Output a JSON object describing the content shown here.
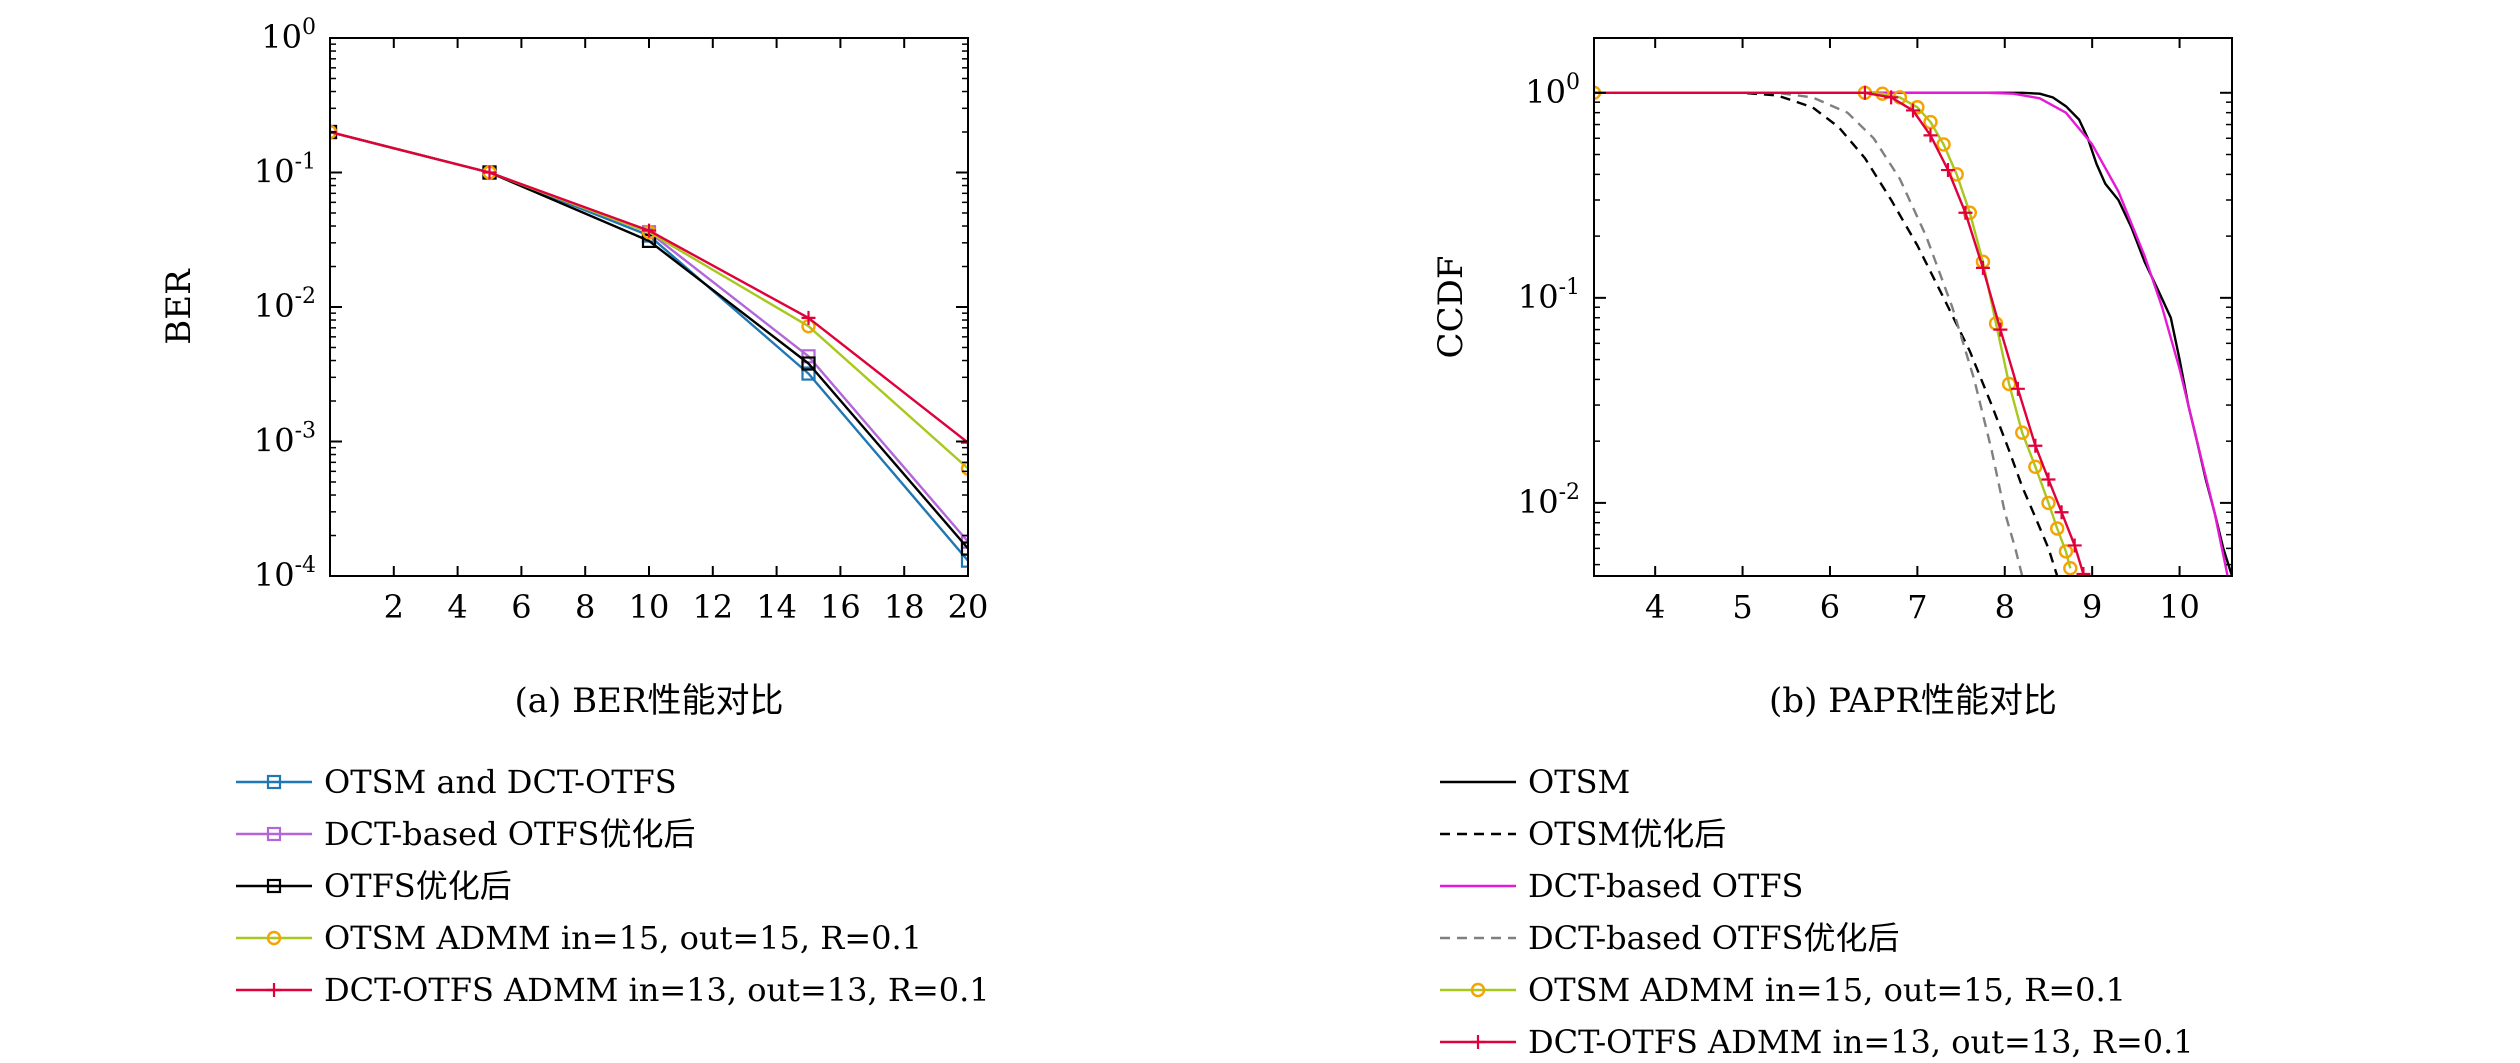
{
  "chart_data": [
    {
      "type": "line",
      "caption": "(a) BER性能对比",
      "title": "",
      "xlabel": "",
      "ylabel": "BER",
      "xlim": [
        0,
        20
      ],
      "ylim": [
        0.0001,
        1
      ],
      "y_scale": "log",
      "grid": false,
      "legend_position": "below",
      "x_ticks": [
        2,
        4,
        6,
        8,
        10,
        12,
        14,
        16,
        18,
        20
      ],
      "x_tick_labels": [
        "2",
        "4",
        "6",
        "8",
        "10",
        "12",
        "14",
        "16",
        "18",
        "20"
      ],
      "y_ticks": [
        1,
        0.1,
        0.01,
        0.001,
        0.0001
      ],
      "y_tick_labels": [
        {
          "base": "10",
          "exp": "0"
        },
        {
          "base": "10",
          "exp": "-1"
        },
        {
          "base": "10",
          "exp": "-2"
        },
        {
          "base": "10",
          "exp": "-3"
        },
        {
          "base": "10",
          "exp": "-4"
        }
      ],
      "series": [
        {
          "name": "OTSM and DCT-OTFS",
          "color": "#1f77b4",
          "marker": "square",
          "x": [
            0,
            5,
            10,
            15,
            20
          ],
          "y": [
            0.2,
            0.1,
            0.034,
            0.0032,
            0.00013
          ]
        },
        {
          "name": "DCT-based OTFS优化后",
          "color": "#b266d9",
          "marker": "square",
          "x": [
            0,
            5,
            10,
            15,
            20
          ],
          "y": [
            0.2,
            0.1,
            0.036,
            0.0043,
            0.00018
          ]
        },
        {
          "name": "OTFS优化后",
          "color": "#000000",
          "marker": "square",
          "x": [
            0,
            5,
            10,
            15,
            20
          ],
          "y": [
            0.2,
            0.1,
            0.031,
            0.0038,
            0.00016
          ]
        },
        {
          "name": "OTSM ADMM in=15, out=15, R=0.1",
          "color": "#a8c81e",
          "marker": "circle",
          "marker_color": "#f5a300",
          "x": [
            0,
            5,
            10,
            15,
            20
          ],
          "y": [
            0.2,
            0.1,
            0.036,
            0.0072,
            0.00063
          ]
        },
        {
          "name": "DCT-OTFS ADMM in=13, out=13, R=0.1",
          "color": "#e0003c",
          "marker": "plus",
          "x": [
            0,
            5,
            10,
            15,
            20
          ],
          "y": [
            0.2,
            0.1,
            0.037,
            0.0083,
            0.00098
          ]
        }
      ]
    },
    {
      "type": "line",
      "caption": "(b) PAPR性能对比",
      "title": "",
      "xlabel": "",
      "ylabel": "CCDF",
      "xlim": [
        3.3,
        10.6
      ],
      "ylim": [
        0.0044,
        1.85
      ],
      "y_scale": "log",
      "grid": false,
      "legend_position": "below",
      "x_ticks": [
        4,
        5,
        6,
        7,
        8,
        9,
        10
      ],
      "x_tick_labels": [
        "4",
        "5",
        "6",
        "7",
        "8",
        "9",
        "10"
      ],
      "y_ticks": [
        1,
        0.1,
        0.01
      ],
      "y_tick_labels": [
        {
          "base": "10",
          "exp": "0"
        },
        {
          "base": "10",
          "exp": "-1"
        },
        {
          "base": "10",
          "exp": "-2"
        }
      ],
      "series": [
        {
          "name": "OTSM",
          "color": "#000000",
          "style": "solid",
          "x": [
            3.3,
            8.2,
            8.4,
            8.55,
            8.7,
            8.85,
            8.95,
            9.05,
            9.15,
            9.3,
            9.45,
            9.6,
            9.75,
            9.9,
            10.0,
            10.1,
            10.2,
            10.3,
            10.4,
            10.5,
            10.6
          ],
          "y": [
            1,
            1,
            0.99,
            0.95,
            0.86,
            0.74,
            0.6,
            0.45,
            0.36,
            0.3,
            0.22,
            0.15,
            0.11,
            0.08,
            0.05,
            0.03,
            0.02,
            0.013,
            0.009,
            0.006,
            0.0044
          ]
        },
        {
          "name": "OTSM优化后",
          "color": "#000000",
          "style": "dashed",
          "x": [
            3.3,
            5.0,
            5.4,
            5.8,
            6.1,
            6.4,
            6.7,
            7.0,
            7.3,
            7.6,
            7.85,
            8.05,
            8.2,
            8.35,
            8.5,
            8.6
          ],
          "y": [
            1,
            1,
            0.97,
            0.85,
            0.68,
            0.48,
            0.3,
            0.18,
            0.1,
            0.055,
            0.03,
            0.018,
            0.012,
            0.0085,
            0.006,
            0.0044
          ]
        },
        {
          "name": "DCT-based OTFS",
          "color": "#e619d6",
          "style": "solid",
          "x": [
            3.3,
            7.8,
            8.1,
            8.4,
            8.7,
            9.0,
            9.3,
            9.6,
            9.8,
            10.0,
            10.2,
            10.4,
            10.55
          ],
          "y": [
            1,
            1,
            0.99,
            0.94,
            0.8,
            0.56,
            0.33,
            0.16,
            0.09,
            0.045,
            0.02,
            0.009,
            0.0044
          ]
        },
        {
          "name": "DCT-based OTFS优化后",
          "color": "#808080",
          "style": "dashed",
          "x": [
            3.3,
            5.4,
            5.8,
            6.2,
            6.5,
            6.8,
            7.1,
            7.4,
            7.65,
            7.85,
            8.0,
            8.12,
            8.2
          ],
          "y": [
            1,
            1,
            0.95,
            0.8,
            0.6,
            0.38,
            0.2,
            0.09,
            0.04,
            0.018,
            0.009,
            0.006,
            0.0044
          ]
        },
        {
          "name": "OTSM ADMM in=15, out=15, R=0.1",
          "color": "#a8c81e",
          "style": "solid",
          "marker": "circle",
          "marker_color": "#f5a300",
          "x": [
            3.3,
            6.4,
            6.6,
            6.8,
            7.0,
            7.15,
            7.3,
            7.45,
            7.6,
            7.75,
            7.9,
            8.05,
            8.2,
            8.35,
            8.5,
            8.6,
            8.7,
            8.75
          ],
          "y": [
            1,
            1,
            0.99,
            0.95,
            0.85,
            0.72,
            0.56,
            0.4,
            0.26,
            0.15,
            0.075,
            0.038,
            0.022,
            0.015,
            0.01,
            0.0075,
            0.0058,
            0.0048
          ]
        },
        {
          "name": "DCT-OTFS ADMM in=13, out=13, R=0.1",
          "color": "#e0003c",
          "style": "solid",
          "marker": "plus",
          "x": [
            3.3,
            6.4,
            6.7,
            6.95,
            7.15,
            7.35,
            7.55,
            7.75,
            7.95,
            8.15,
            8.35,
            8.5,
            8.65,
            8.8,
            8.9
          ],
          "y": [
            1,
            1,
            0.95,
            0.82,
            0.62,
            0.42,
            0.26,
            0.14,
            0.07,
            0.036,
            0.019,
            0.013,
            0.009,
            0.0062,
            0.0045
          ]
        }
      ]
    }
  ]
}
